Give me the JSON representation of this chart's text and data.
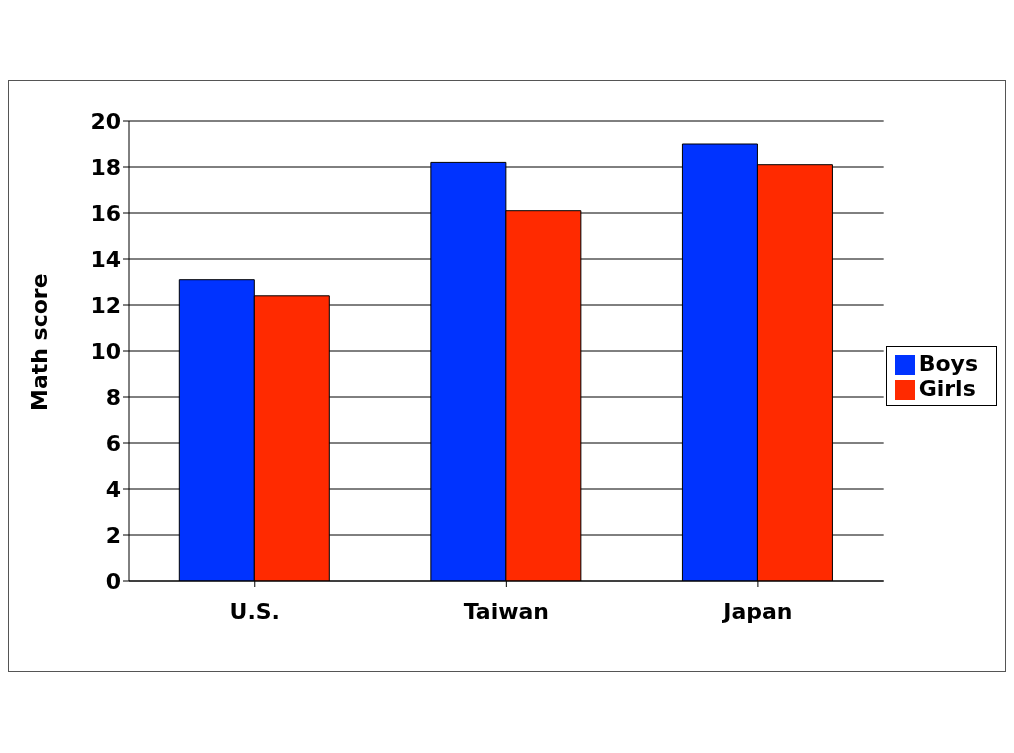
{
  "chart_data": {
    "type": "bar",
    "ylabel": "Math score",
    "categories": [
      "U.S.",
      "Taiwan",
      "Japan"
    ],
    "series": [
      {
        "name": "Boys",
        "color": "#0033ff",
        "values": [
          13.1,
          18.2,
          19.0
        ]
      },
      {
        "name": "Girls",
        "color": "#ff2a00",
        "values": [
          12.4,
          16.1,
          18.1
        ]
      }
    ],
    "ylim": [
      0,
      20
    ],
    "yticks": [
      0,
      2,
      4,
      6,
      8,
      10,
      12,
      14,
      16,
      18,
      20
    ],
    "grid": "y",
    "legend": "right"
  }
}
